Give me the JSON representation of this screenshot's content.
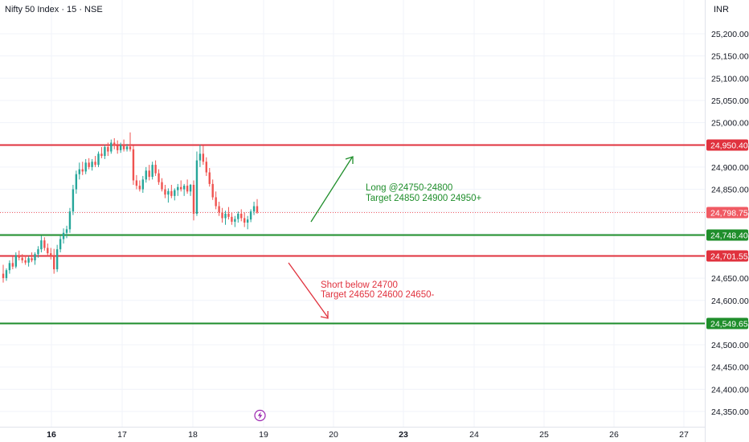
{
  "header": {
    "title": "Nifty 50 Index · 15 · NSE",
    "currency": "INR"
  },
  "colors": {
    "up": "#26a69a",
    "down": "#ef5350",
    "red_line": "#e0323e",
    "green_line": "#1f8e2b",
    "current": "#f05a63",
    "grid": "#f0f3fa",
    "text": "#131722"
  },
  "y_axis": {
    "ticks": [
      "25,200.00",
      "25,150.00",
      "25,100.00",
      "25,050.00",
      "25,000.00",
      "24,950.00",
      "24,900.00",
      "24,850.00",
      "24,800.00",
      "24,750.00",
      "24,700.00",
      "24,650.00",
      "24,600.00",
      "24,550.00",
      "24,500.00",
      "24,450.00",
      "24,400.00",
      "24,350.00"
    ]
  },
  "x_axis": {
    "ticks": [
      {
        "label": "16",
        "bold": true
      },
      {
        "label": "17",
        "bold": false
      },
      {
        "label": "18",
        "bold": false
      },
      {
        "label": "19",
        "bold": false
      },
      {
        "label": "20",
        "bold": false
      },
      {
        "label": "23",
        "bold": true
      },
      {
        "label": "24",
        "bold": false
      },
      {
        "label": "25",
        "bold": false
      },
      {
        "label": "26",
        "bold": false
      },
      {
        "label": "27",
        "bold": false
      }
    ]
  },
  "levels": [
    {
      "label": "24,950.40",
      "color": "red"
    },
    {
      "label": "24,798.75",
      "color": "current"
    },
    {
      "label": "24,748.40",
      "color": "green"
    },
    {
      "label": "24,701.55",
      "color": "red"
    },
    {
      "label": "24,549.65",
      "color": "green"
    }
  ],
  "annotations": {
    "long": {
      "line1": "Long @24750-24800",
      "line2": "Target 24850 24900 24950+"
    },
    "short": {
      "line1": "Short below 24700",
      "line2": "Target 24650 24600 24650-"
    }
  },
  "footer": {
    "event_icon": "lightning-icon"
  },
  "chart_data": {
    "type": "candlestick",
    "levels": [
      24950.4,
      24798.75,
      24748.4,
      24701.55,
      24549.65
    ],
    "candles": [
      {
        "o": 24660,
        "h": 24680,
        "l": 24640,
        "c": 24650
      },
      {
        "o": 24650,
        "h": 24672,
        "l": 24644,
        "c": 24668
      },
      {
        "o": 24668,
        "h": 24690,
        "l": 24660,
        "c": 24684
      },
      {
        "o": 24684,
        "h": 24698,
        "l": 24670,
        "c": 24676
      },
      {
        "o": 24676,
        "h": 24708,
        "l": 24672,
        "c": 24702
      },
      {
        "o": 24702,
        "h": 24712,
        "l": 24690,
        "c": 24696
      },
      {
        "o": 24696,
        "h": 24704,
        "l": 24684,
        "c": 24690
      },
      {
        "o": 24690,
        "h": 24702,
        "l": 24680,
        "c": 24685
      },
      {
        "o": 24685,
        "h": 24700,
        "l": 24676,
        "c": 24695
      },
      {
        "o": 24695,
        "h": 24708,
        "l": 24686,
        "c": 24690
      },
      {
        "o": 24690,
        "h": 24708,
        "l": 24680,
        "c": 24704
      },
      {
        "o": 24704,
        "h": 24722,
        "l": 24696,
        "c": 24715
      },
      {
        "o": 24715,
        "h": 24745,
        "l": 24708,
        "c": 24735
      },
      {
        "o": 24735,
        "h": 24742,
        "l": 24712,
        "c": 24718
      },
      {
        "o": 24718,
        "h": 24728,
        "l": 24700,
        "c": 24706
      },
      {
        "o": 24706,
        "h": 24718,
        "l": 24692,
        "c": 24700
      },
      {
        "o": 24700,
        "h": 24716,
        "l": 24660,
        "c": 24670
      },
      {
        "o": 24670,
        "h": 24725,
        "l": 24664,
        "c": 24715
      },
      {
        "o": 24715,
        "h": 24746,
        "l": 24708,
        "c": 24738
      },
      {
        "o": 24738,
        "h": 24762,
        "l": 24728,
        "c": 24752
      },
      {
        "o": 24752,
        "h": 24768,
        "l": 24740,
        "c": 24760
      },
      {
        "o": 24760,
        "h": 24808,
        "l": 24752,
        "c": 24800
      },
      {
        "o": 24800,
        "h": 24860,
        "l": 24792,
        "c": 24850
      },
      {
        "o": 24850,
        "h": 24892,
        "l": 24840,
        "c": 24884
      },
      {
        "o": 24884,
        "h": 24910,
        "l": 24872,
        "c": 24895
      },
      {
        "o": 24895,
        "h": 24912,
        "l": 24882,
        "c": 24890
      },
      {
        "o": 24890,
        "h": 24918,
        "l": 24884,
        "c": 24910
      },
      {
        "o": 24910,
        "h": 24920,
        "l": 24895,
        "c": 24900
      },
      {
        "o": 24900,
        "h": 24918,
        "l": 24892,
        "c": 24912
      },
      {
        "o": 24912,
        "h": 24925,
        "l": 24900,
        "c": 24905
      },
      {
        "o": 24905,
        "h": 24935,
        "l": 24900,
        "c": 24930
      },
      {
        "o": 24930,
        "h": 24945,
        "l": 24920,
        "c": 24925
      },
      {
        "o": 24925,
        "h": 24950,
        "l": 24918,
        "c": 24945
      },
      {
        "o": 24945,
        "h": 24955,
        "l": 24925,
        "c": 24935
      },
      {
        "o": 24935,
        "h": 24962,
        "l": 24930,
        "c": 24955
      },
      {
        "o": 24955,
        "h": 24965,
        "l": 24940,
        "c": 24948
      },
      {
        "o": 24948,
        "h": 24960,
        "l": 24930,
        "c": 24938
      },
      {
        "o": 24938,
        "h": 24955,
        "l": 24932,
        "c": 24950
      },
      {
        "o": 24950,
        "h": 24962,
        "l": 24935,
        "c": 24940
      },
      {
        "o": 24940,
        "h": 24952,
        "l": 24935,
        "c": 24946
      },
      {
        "o": 24946,
        "h": 24978,
        "l": 24935,
        "c": 24940
      },
      {
        "o": 24940,
        "h": 24948,
        "l": 24860,
        "c": 24870
      },
      {
        "o": 24870,
        "h": 24882,
        "l": 24850,
        "c": 24858
      },
      {
        "o": 24858,
        "h": 24870,
        "l": 24845,
        "c": 24850
      },
      {
        "o": 24850,
        "h": 24880,
        "l": 24842,
        "c": 24872
      },
      {
        "o": 24872,
        "h": 24900,
        "l": 24865,
        "c": 24892
      },
      {
        "o": 24892,
        "h": 24905,
        "l": 24870,
        "c": 24878
      },
      {
        "o": 24878,
        "h": 24912,
        "l": 24872,
        "c": 24905
      },
      {
        "o": 24905,
        "h": 24915,
        "l": 24880,
        "c": 24886
      },
      {
        "o": 24886,
        "h": 24895,
        "l": 24860,
        "c": 24866
      },
      {
        "o": 24866,
        "h": 24875,
        "l": 24845,
        "c": 24850
      },
      {
        "o": 24850,
        "h": 24860,
        "l": 24830,
        "c": 24838
      },
      {
        "o": 24838,
        "h": 24852,
        "l": 24820,
        "c": 24846
      },
      {
        "o": 24846,
        "h": 24860,
        "l": 24830,
        "c": 24835
      },
      {
        "o": 24835,
        "h": 24852,
        "l": 24825,
        "c": 24848
      },
      {
        "o": 24848,
        "h": 24862,
        "l": 24835,
        "c": 24855
      },
      {
        "o": 24855,
        "h": 24870,
        "l": 24845,
        "c": 24850
      },
      {
        "o": 24850,
        "h": 24862,
        "l": 24835,
        "c": 24858
      },
      {
        "o": 24858,
        "h": 24872,
        "l": 24840,
        "c": 24845
      },
      {
        "o": 24845,
        "h": 24862,
        "l": 24835,
        "c": 24860
      },
      {
        "o": 24860,
        "h": 24870,
        "l": 24780,
        "c": 24795
      },
      {
        "o": 24795,
        "h": 24935,
        "l": 24790,
        "c": 24915
      },
      {
        "o": 24915,
        "h": 24950,
        "l": 24900,
        "c": 24930
      },
      {
        "o": 24930,
        "h": 24948,
        "l": 24905,
        "c": 24912
      },
      {
        "o": 24912,
        "h": 24922,
        "l": 24880,
        "c": 24888
      },
      {
        "o": 24888,
        "h": 24898,
        "l": 24856,
        "c": 24862
      },
      {
        "o": 24862,
        "h": 24872,
        "l": 24826,
        "c": 24832
      },
      {
        "o": 24832,
        "h": 24845,
        "l": 24805,
        "c": 24812
      },
      {
        "o": 24812,
        "h": 24822,
        "l": 24790,
        "c": 24798
      },
      {
        "o": 24798,
        "h": 24808,
        "l": 24775,
        "c": 24785
      },
      {
        "o": 24785,
        "h": 24802,
        "l": 24770,
        "c": 24795
      },
      {
        "o": 24795,
        "h": 24810,
        "l": 24782,
        "c": 24788
      },
      {
        "o": 24788,
        "h": 24798,
        "l": 24770,
        "c": 24777
      },
      {
        "o": 24777,
        "h": 24790,
        "l": 24765,
        "c": 24783
      },
      {
        "o": 24783,
        "h": 24800,
        "l": 24775,
        "c": 24795
      },
      {
        "o": 24795,
        "h": 24805,
        "l": 24778,
        "c": 24785
      },
      {
        "o": 24785,
        "h": 24798,
        "l": 24765,
        "c": 24775
      },
      {
        "o": 24775,
        "h": 24790,
        "l": 24760,
        "c": 24782
      },
      {
        "o": 24782,
        "h": 24805,
        "l": 24776,
        "c": 24800
      },
      {
        "o": 24800,
        "h": 24822,
        "l": 24792,
        "c": 24812
      },
      {
        "o": 24812,
        "h": 24828,
        "l": 24795,
        "c": 24798
      }
    ]
  }
}
